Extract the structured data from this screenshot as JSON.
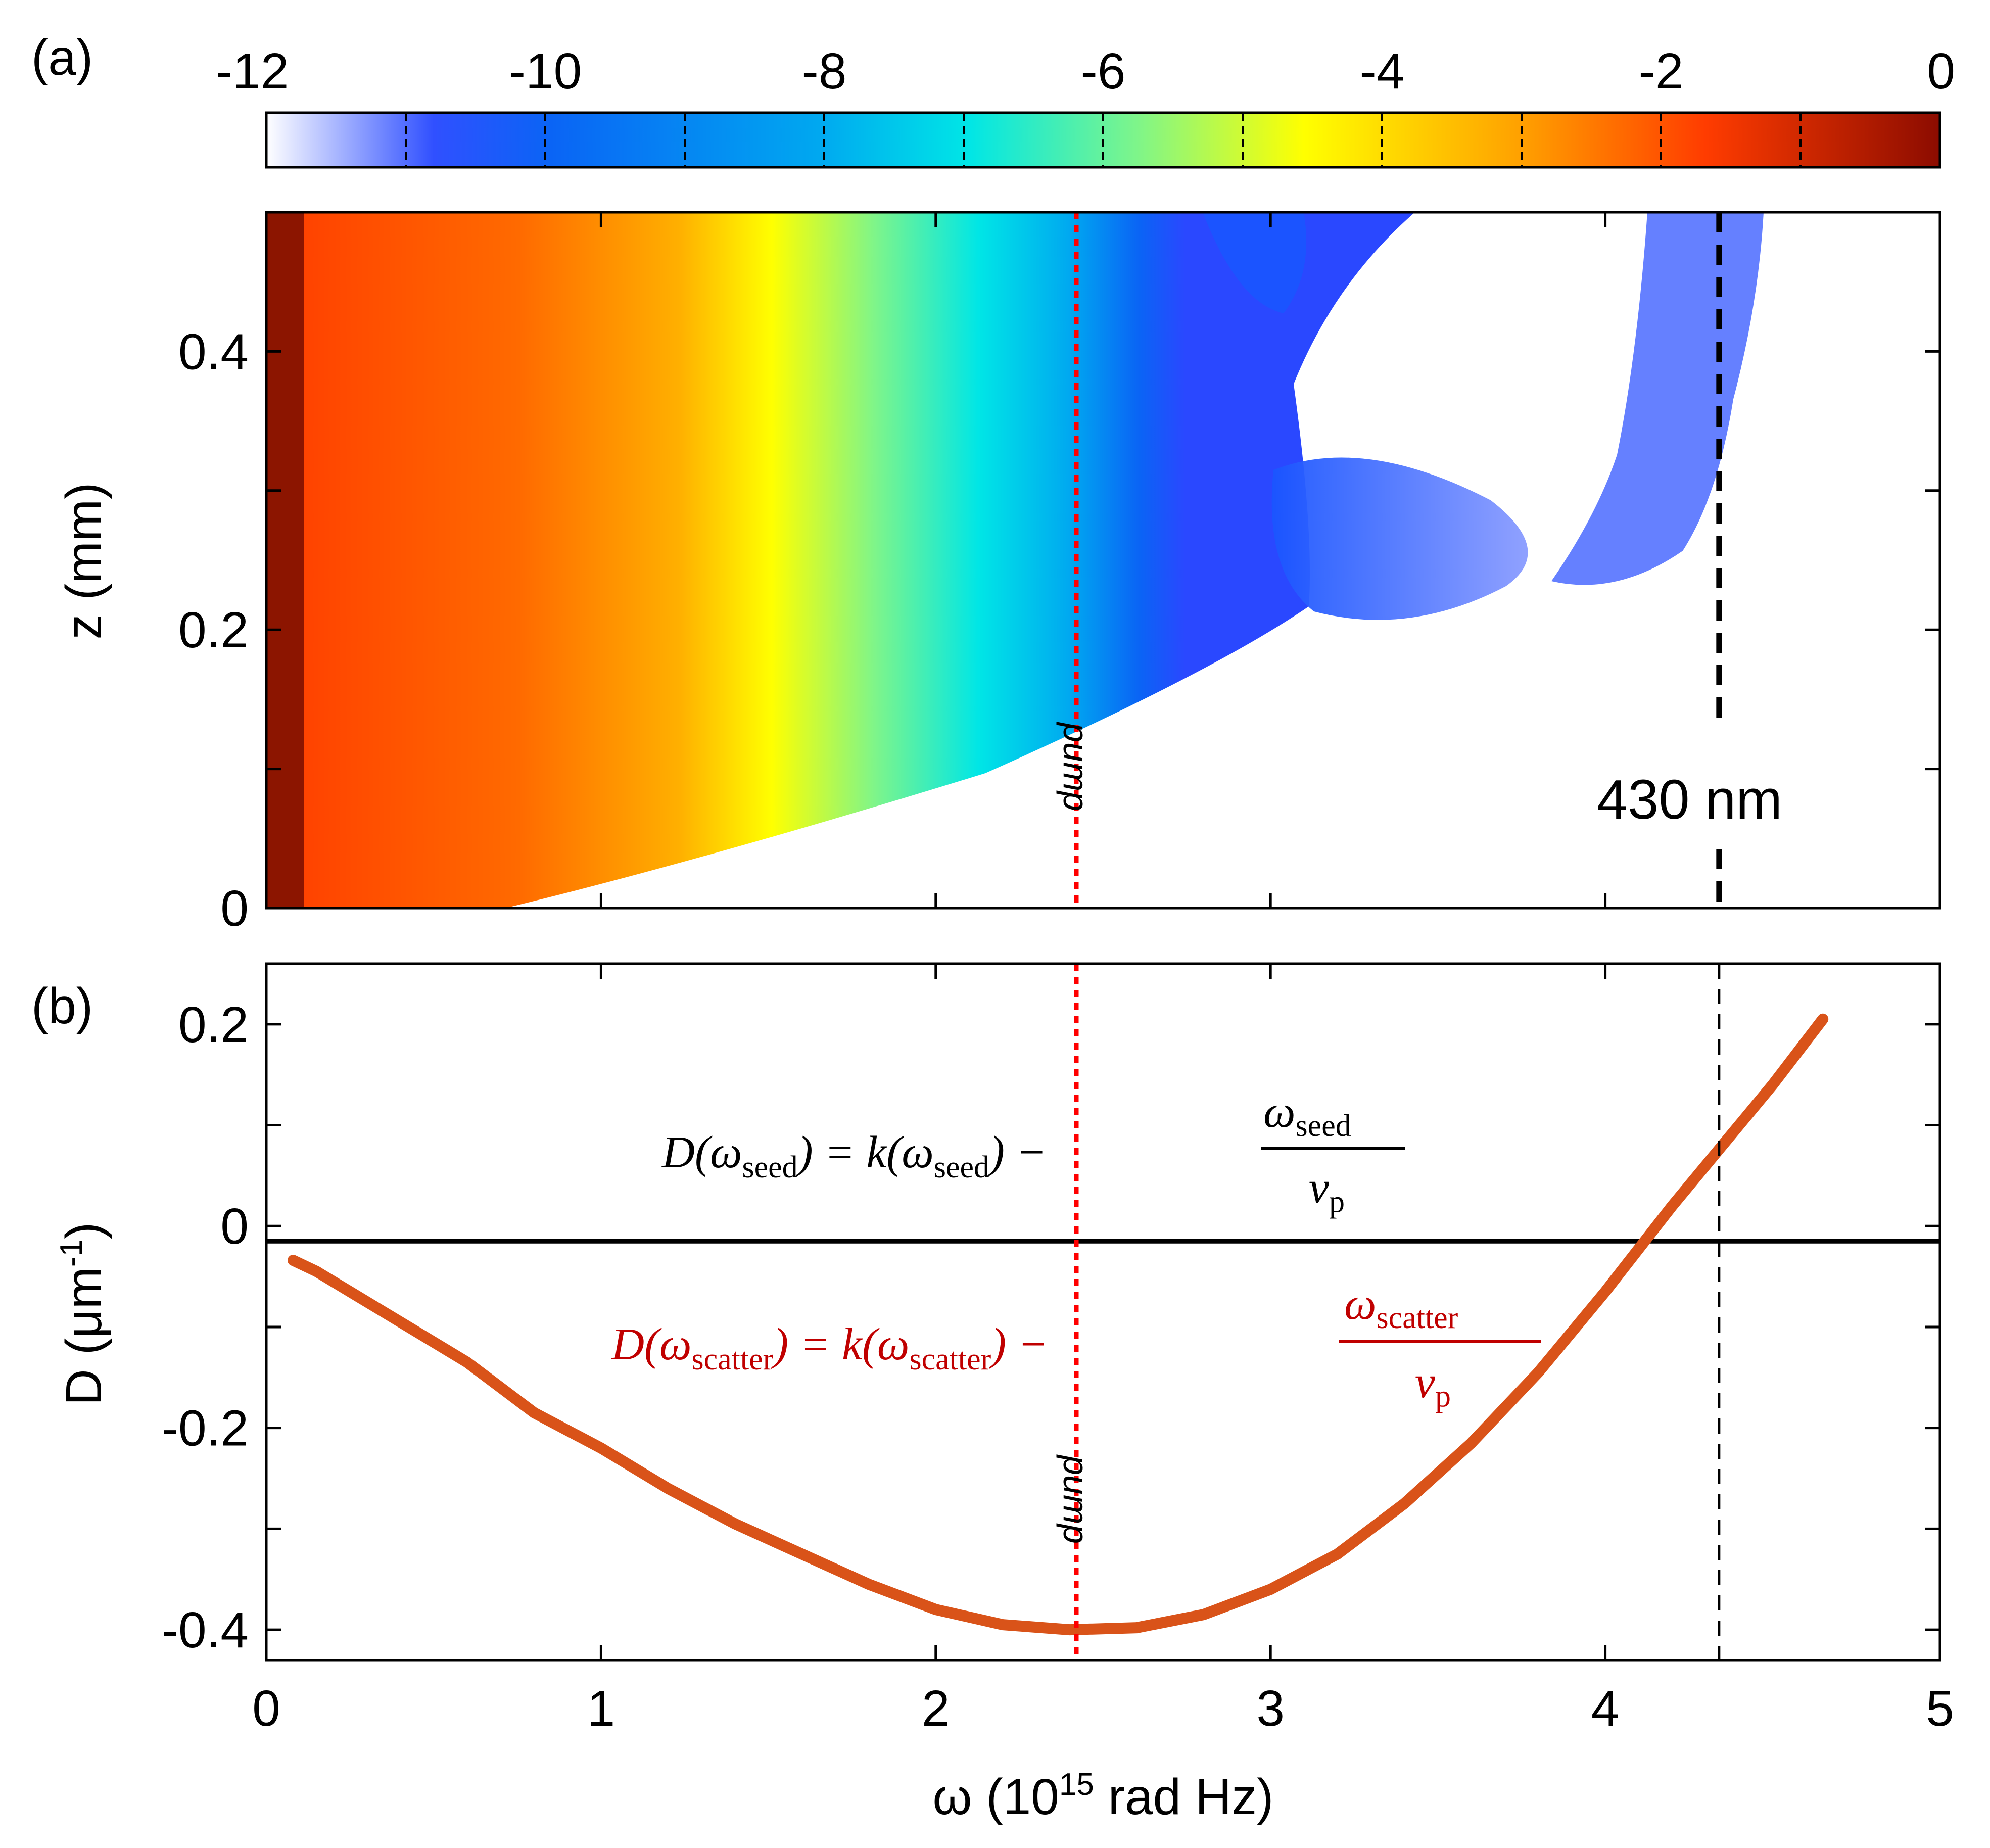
{
  "figure": {
    "panel_a_label": "(a)",
    "panel_b_label": "(b)"
  },
  "chart_data": [
    {
      "type": "heatmap",
      "panel": "(a)",
      "colorbar": {
        "ticks": [
          "-12",
          "-10",
          "-8",
          "-6",
          "-4",
          "-2",
          "0"
        ],
        "range": [
          -12,
          0
        ],
        "colors": [
          "#ffffff",
          "#3050ff",
          "#0a64f5",
          "#00c8f0",
          "#7ef58a",
          "#ffff00",
          "#ffa000",
          "#ff3c00",
          "#8c0c00"
        ]
      },
      "xlim": [
        0,
        5
      ],
      "ylim": [
        0,
        0.5
      ],
      "ylabel": "z (mm)",
      "yticks": [
        "0",
        "0.2",
        "0.4"
      ],
      "ytick_values": [
        0,
        0.2,
        0.4
      ],
      "annotations": {
        "pump_label": "pump",
        "pump_omega": 2.42,
        "line_label": "430 nm",
        "line_omega": 4.34
      }
    },
    {
      "type": "line",
      "panel": "(b)",
      "xlabel_main": "ω (10",
      "xlabel_sup": "15",
      "xlabel_rest": " rad Hz)",
      "ylabel_main": "D (μm",
      "ylabel_sup": "-1",
      "ylabel_rest": ")",
      "xticks": [
        "0",
        "1",
        "2",
        "3",
        "4",
        "5"
      ],
      "xtick_values": [
        0,
        1,
        2,
        3,
        4,
        5
      ],
      "yticks": [
        "-0.4",
        "-0.2",
        "0",
        "0.2"
      ],
      "ytick_values": [
        -0.4,
        -0.2,
        0,
        0.2
      ],
      "xlim": [
        0,
        5
      ],
      "ylim": [
        -0.43,
        0.26
      ],
      "series": [
        {
          "color": "#d95319",
          "x": [
            0.08,
            0.15,
            0.25,
            0.35,
            0.5,
            0.6,
            0.7,
            0.8,
            1.0,
            1.2,
            1.4,
            1.6,
            1.8,
            2.0,
            2.2,
            2.4,
            2.6,
            2.8,
            3.0,
            3.2,
            3.4,
            3.6,
            3.8,
            4.0,
            4.2,
            4.35,
            4.5,
            4.65
          ],
          "y": [
            -0.034,
            -0.045,
            -0.065,
            -0.085,
            -0.115,
            -0.135,
            -0.16,
            -0.185,
            -0.22,
            -0.26,
            -0.295,
            -0.325,
            -0.355,
            -0.38,
            -0.395,
            -0.4,
            -0.398,
            -0.385,
            -0.36,
            -0.325,
            -0.275,
            -0.215,
            -0.145,
            -0.065,
            0.02,
            0.08,
            0.14,
            0.205
          ]
        }
      ],
      "seed_line": {
        "y": -0.015,
        "color": "#000000"
      },
      "equation_seed": {
        "lhs": "D(ω",
        "lhs_sub": "seed",
        "mid": ") = k(ω",
        "mid_sub": "seed",
        "rhs": ") −",
        "num": "ω",
        "num_sub": "seed",
        "den": "v",
        "den_sub": "p"
      },
      "equation_scatter": {
        "lhs": "D(ω",
        "lhs_sub": "scatter",
        "mid": ") = k(ω",
        "mid_sub": "scatter",
        "rhs": ") −",
        "num": "ω",
        "num_sub": "scatter",
        "den": "v",
        "den_sub": "p",
        "color": "#c00000"
      },
      "annotations": {
        "pump_label": "pump",
        "pump_omega": 2.42,
        "line_omega": 4.34
      }
    }
  ]
}
